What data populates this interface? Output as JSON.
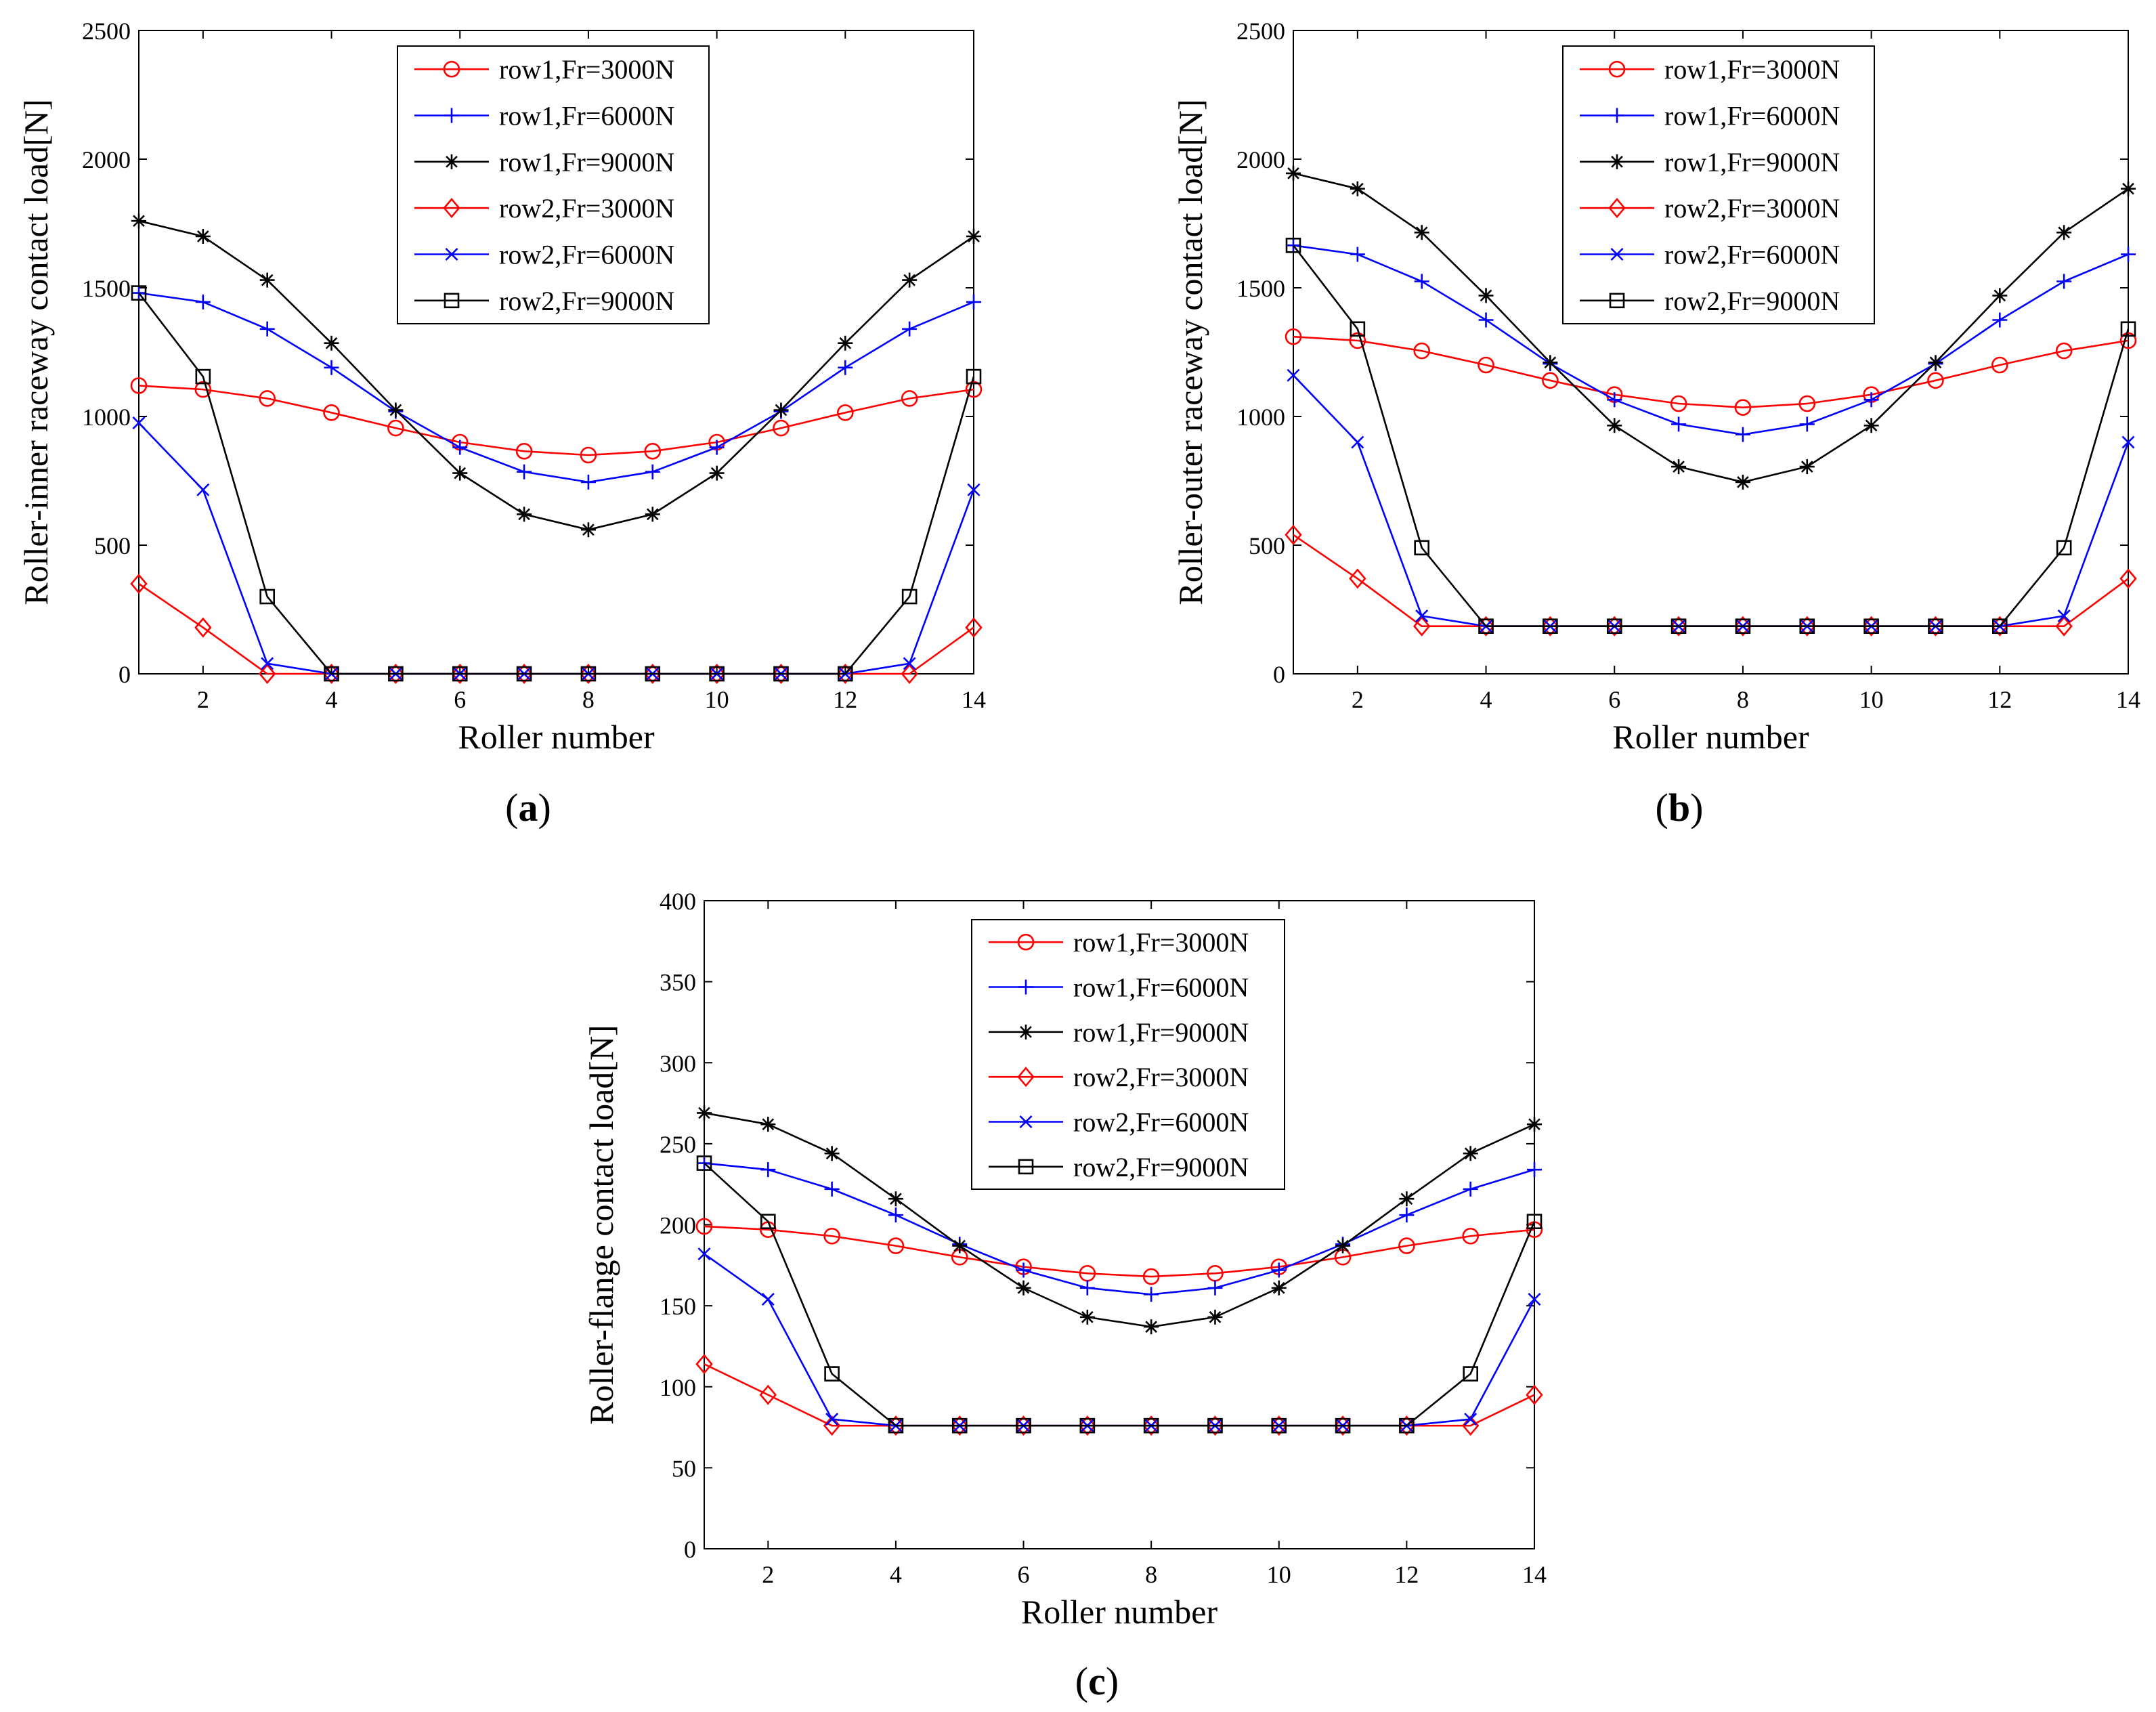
{
  "figure": {
    "panels": [
      {
        "id": "a",
        "caption_open": "(",
        "caption_letter": "a",
        "caption_close": ")"
      },
      {
        "id": "b",
        "caption_open": "(",
        "caption_letter": "b",
        "caption_close": ")"
      },
      {
        "id": "c",
        "caption_open": "(",
        "caption_letter": "c",
        "caption_close": ")"
      }
    ]
  },
  "colors": {
    "red": "#ff0000",
    "blue": "#0000ff",
    "black": "#000000"
  },
  "chart_data": [
    {
      "id": "a",
      "type": "line",
      "title": "",
      "xlabel": "Roller number",
      "ylabel": "Roller-inner raceway contact load[N]",
      "xlim": [
        1,
        14
      ],
      "ylim": [
        0,
        2500
      ],
      "xticks": [
        2,
        4,
        6,
        8,
        10,
        12,
        14
      ],
      "xtick_labels": [
        "2",
        "4",
        "6",
        "8",
        "10",
        "12",
        "14"
      ],
      "yticks": [
        0,
        500,
        1000,
        1500,
        2000,
        2500
      ],
      "ytick_labels": [
        "0",
        "500",
        "1000",
        "1500",
        "2000",
        "2500"
      ],
      "grid": false,
      "legend_position": "top-center",
      "x": [
        1,
        2,
        3,
        4,
        5,
        6,
        7,
        8,
        9,
        10,
        11,
        12,
        13,
        14
      ],
      "series": [
        {
          "name": "row1,Fr=3000N",
          "color": "#ff0000",
          "marker": "circle",
          "values": [
            1120,
            1105,
            1070,
            1015,
            955,
            900,
            865,
            850,
            865,
            900,
            955,
            1015,
            1070,
            1105
          ]
        },
        {
          "name": "row1,Fr=6000N",
          "color": "#0000ff",
          "marker": "plus",
          "values": [
            1480,
            1445,
            1340,
            1190,
            1020,
            880,
            785,
            745,
            785,
            880,
            1020,
            1190,
            1340,
            1445
          ]
        },
        {
          "name": "row1,Fr=9000N",
          "color": "#000000",
          "marker": "asterisk",
          "values": [
            1760,
            1700,
            1530,
            1285,
            1025,
            780,
            620,
            560,
            620,
            780,
            1025,
            1285,
            1530,
            1700
          ]
        },
        {
          "name": "row2,Fr=3000N",
          "color": "#ff0000",
          "marker": "diamond",
          "values": [
            350,
            180,
            0,
            0,
            0,
            0,
            0,
            0,
            0,
            0,
            0,
            0,
            0,
            180
          ]
        },
        {
          "name": "row2,Fr=6000N",
          "color": "#0000ff",
          "marker": "x",
          "values": [
            975,
            715,
            40,
            0,
            0,
            0,
            0,
            0,
            0,
            0,
            0,
            0,
            40,
            715
          ]
        },
        {
          "name": "row2,Fr=9000N",
          "color": "#000000",
          "marker": "square",
          "values": [
            1480,
            1155,
            300,
            0,
            0,
            0,
            0,
            0,
            0,
            0,
            0,
            0,
            300,
            1155
          ]
        }
      ]
    },
    {
      "id": "b",
      "type": "line",
      "title": "",
      "xlabel": "Roller number",
      "ylabel": "Roller-outer raceway contact load[N]",
      "xlim": [
        1,
        14
      ],
      "ylim": [
        0,
        2500
      ],
      "xticks": [
        2,
        4,
        6,
        8,
        10,
        12,
        14
      ],
      "xtick_labels": [
        "2",
        "4",
        "6",
        "8",
        "10",
        "12",
        "14"
      ],
      "yticks": [
        0,
        500,
        1000,
        1500,
        2000,
        2500
      ],
      "ytick_labels": [
        "0",
        "500",
        "1000",
        "1500",
        "2000",
        "2500"
      ],
      "grid": false,
      "legend_position": "top-center",
      "x": [
        1,
        2,
        3,
        4,
        5,
        6,
        7,
        8,
        9,
        10,
        11,
        12,
        13,
        14
      ],
      "series": [
        {
          "name": "row1,Fr=3000N",
          "color": "#ff0000",
          "marker": "circle",
          "values": [
            1310,
            1295,
            1255,
            1200,
            1140,
            1085,
            1050,
            1035,
            1050,
            1085,
            1140,
            1200,
            1255,
            1295
          ]
        },
        {
          "name": "row1,Fr=6000N",
          "color": "#0000ff",
          "marker": "plus",
          "values": [
            1665,
            1630,
            1525,
            1375,
            1205,
            1065,
            970,
            930,
            970,
            1065,
            1205,
            1375,
            1525,
            1630
          ]
        },
        {
          "name": "row1,Fr=9000N",
          "color": "#000000",
          "marker": "asterisk",
          "values": [
            1945,
            1885,
            1715,
            1470,
            1210,
            965,
            805,
            745,
            805,
            965,
            1210,
            1470,
            1715,
            1885
          ]
        },
        {
          "name": "row2,Fr=3000N",
          "color": "#ff0000",
          "marker": "diamond",
          "values": [
            540,
            370,
            185,
            185,
            185,
            185,
            185,
            185,
            185,
            185,
            185,
            185,
            185,
            370
          ]
        },
        {
          "name": "row2,Fr=6000N",
          "color": "#0000ff",
          "marker": "x",
          "values": [
            1160,
            900,
            225,
            185,
            185,
            185,
            185,
            185,
            185,
            185,
            185,
            185,
            225,
            900
          ]
        },
        {
          "name": "row2,Fr=9000N",
          "color": "#000000",
          "marker": "square",
          "values": [
            1665,
            1340,
            490,
            185,
            185,
            185,
            185,
            185,
            185,
            185,
            185,
            185,
            490,
            1340
          ]
        }
      ]
    },
    {
      "id": "c",
      "type": "line",
      "title": "",
      "xlabel": "Roller number",
      "ylabel": "Roller-flange contact load[N]",
      "xlim": [
        1,
        14
      ],
      "ylim": [
        0,
        400
      ],
      "xticks": [
        2,
        4,
        6,
        8,
        10,
        12,
        14
      ],
      "xtick_labels": [
        "2",
        "4",
        "6",
        "8",
        "10",
        "12",
        "14"
      ],
      "yticks": [
        0,
        50,
        100,
        150,
        200,
        250,
        300,
        350,
        400
      ],
      "ytick_labels": [
        "0",
        "50",
        "100",
        "150",
        "200",
        "250",
        "300",
        "350",
        "400"
      ],
      "grid": false,
      "legend_position": "top-center",
      "x": [
        1,
        2,
        3,
        4,
        5,
        6,
        7,
        8,
        9,
        10,
        11,
        12,
        13,
        14
      ],
      "series": [
        {
          "name": "row1,Fr=3000N",
          "color": "#ff0000",
          "marker": "circle",
          "values": [
            199,
            197,
            193,
            187,
            180,
            174,
            170,
            168,
            170,
            174,
            180,
            187,
            193,
            197
          ]
        },
        {
          "name": "row1,Fr=6000N",
          "color": "#0000ff",
          "marker": "plus",
          "values": [
            238,
            234,
            222,
            206,
            188,
            172,
            161,
            157,
            161,
            172,
            188,
            206,
            222,
            234
          ]
        },
        {
          "name": "row1,Fr=9000N",
          "color": "#000000",
          "marker": "asterisk",
          "values": [
            269,
            262,
            244,
            216,
            187,
            161,
            143,
            137,
            143,
            161,
            187,
            216,
            244,
            262
          ]
        },
        {
          "name": "row2,Fr=3000N",
          "color": "#ff0000",
          "marker": "diamond",
          "values": [
            114,
            95,
            76,
            76,
            76,
            76,
            76,
            76,
            76,
            76,
            76,
            76,
            76,
            95
          ]
        },
        {
          "name": "row2,Fr=6000N",
          "color": "#0000ff",
          "marker": "x",
          "values": [
            182,
            154,
            80,
            76,
            76,
            76,
            76,
            76,
            76,
            76,
            76,
            76,
            80,
            154
          ]
        },
        {
          "name": "row2,Fr=9000N",
          "color": "#000000",
          "marker": "square",
          "values": [
            238,
            202,
            108,
            76,
            76,
            76,
            76,
            76,
            76,
            76,
            76,
            76,
            108,
            202
          ]
        }
      ]
    }
  ]
}
